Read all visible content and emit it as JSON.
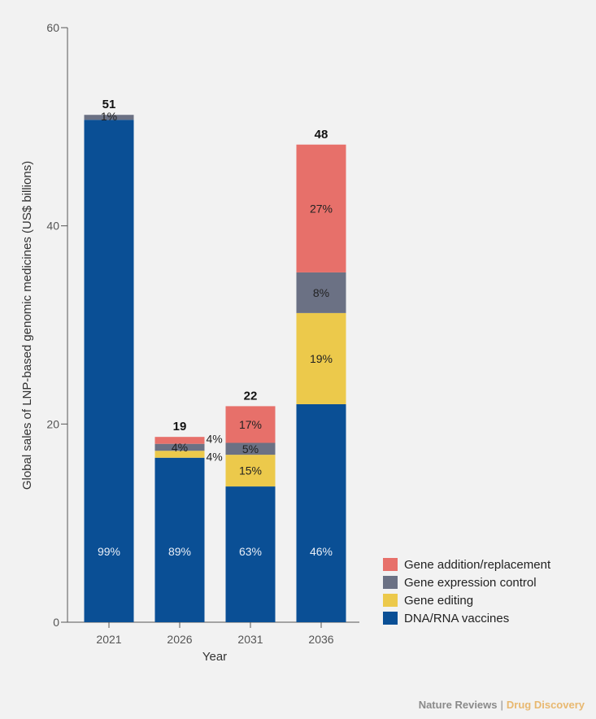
{
  "chart_data": {
    "type": "bar",
    "stacked": true,
    "categories": [
      "2021",
      "2026",
      "2031",
      "2036"
    ],
    "xlabel": "Year",
    "ylabel": "Global sales of LNP-based genomic medicines (US$ billions)",
    "ylim": [
      0,
      60
    ],
    "yticks": [
      0,
      20,
      40,
      60
    ],
    "totals": [
      "51",
      "19",
      "22",
      "48"
    ],
    "total_values": [
      51.2,
      18.7,
      21.8,
      48.2
    ],
    "series": [
      {
        "name": "DNA/RNA vaccines",
        "color": "#0a4f95",
        "values": [
          50.7,
          16.6,
          13.7,
          22.0
        ],
        "labels": [
          "99%",
          "89%",
          "63%",
          "46%"
        ]
      },
      {
        "name": "Gene editing",
        "color": "#ecc94b",
        "values": [
          0.0,
          0.7,
          3.2,
          9.2
        ],
        "labels": [
          "",
          "4%",
          "15%",
          "19%"
        ]
      },
      {
        "name": "Gene expression control",
        "color": "#6b7184",
        "values": [
          0.5,
          0.7,
          1.2,
          4.1
        ],
        "labels": [
          "1%",
          "4%",
          "5%",
          "8%"
        ]
      },
      {
        "name": "Gene addition/replacement",
        "color": "#e7706a",
        "values": [
          0.0,
          0.7,
          3.7,
          12.9
        ],
        "labels": [
          "",
          "4%",
          "17%",
          "27%"
        ]
      }
    ],
    "legend_position": "bottom-right",
    "grid": false
  },
  "legend": {
    "items": [
      {
        "label": "Gene addition/replacement",
        "color": "#e7706a"
      },
      {
        "label": "Gene expression control",
        "color": "#6b7184"
      },
      {
        "label": "Gene editing",
        "color": "#ecc94b"
      },
      {
        "label": "DNA/RNA vaccines",
        "color": "#0a4f95"
      }
    ]
  },
  "credit": {
    "journal": "Nature Reviews",
    "separator": "|",
    "section": "Drug Discovery"
  }
}
